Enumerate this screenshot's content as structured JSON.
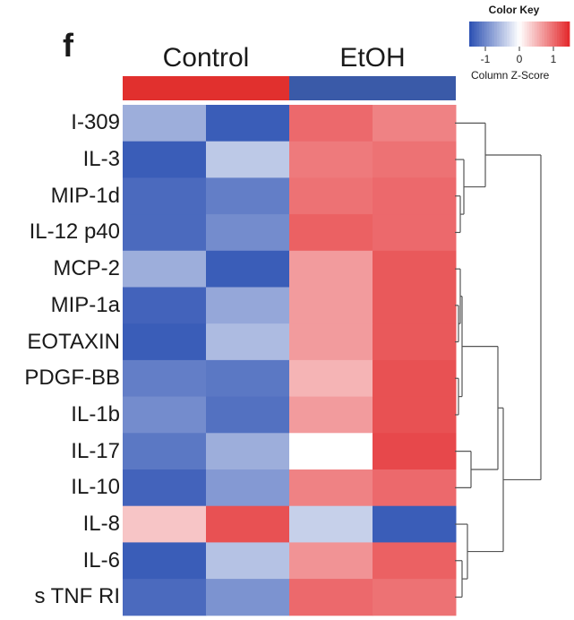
{
  "chart_data": {
    "type": "heatmap",
    "panel_label": "f",
    "columns": [
      "Control",
      "Control",
      "EtOH",
      "EtOH"
    ],
    "groups": [
      {
        "label": "Control",
        "color": "#e1302e"
      },
      {
        "label": "EtOH",
        "color": "#3a5aa8"
      }
    ],
    "rows": [
      "I-309",
      "IL-3",
      "MIP-1d",
      "IL-12 p40",
      "MCP-2",
      "MIP-1a",
      "EOTAXIN",
      "PDGF-BB",
      "IL-1b",
      "IL-17",
      "IL-10",
      "IL-8",
      "IL-6",
      "s TNF RI"
    ],
    "values": [
      [
        -0.6,
        -1.2,
        0.9,
        0.75
      ],
      [
        -1.2,
        -0.4,
        0.8,
        0.85
      ],
      [
        -1.1,
        -0.95,
        0.85,
        0.9
      ],
      [
        -1.1,
        -0.85,
        0.95,
        0.9
      ],
      [
        -0.6,
        -1.2,
        0.6,
        1.0
      ],
      [
        -1.15,
        -0.65,
        0.6,
        1.0
      ],
      [
        -1.2,
        -0.5,
        0.6,
        1.0
      ],
      [
        -0.95,
        -1.0,
        0.45,
        1.05
      ],
      [
        -0.85,
        -1.05,
        0.6,
        1.05
      ],
      [
        -1.0,
        -0.6,
        0.0,
        1.1
      ],
      [
        -1.15,
        -0.75,
        0.75,
        0.9
      ],
      [
        0.35,
        1.05,
        -0.35,
        -1.2
      ],
      [
        -1.2,
        -0.45,
        0.65,
        0.95
      ],
      [
        -1.1,
        -0.8,
        0.9,
        0.85
      ]
    ],
    "color_scale": {
      "low": "#2a4fb2",
      "mid": "#ffffff",
      "high": "#e3272a",
      "vmin": -1.3,
      "vmax": 1.3
    },
    "color_key": {
      "title": "Color Key",
      "ticks": [
        "-1",
        "0",
        "1"
      ],
      "axis_label": "Column Z-Score"
    },
    "dendrogram": "row"
  }
}
